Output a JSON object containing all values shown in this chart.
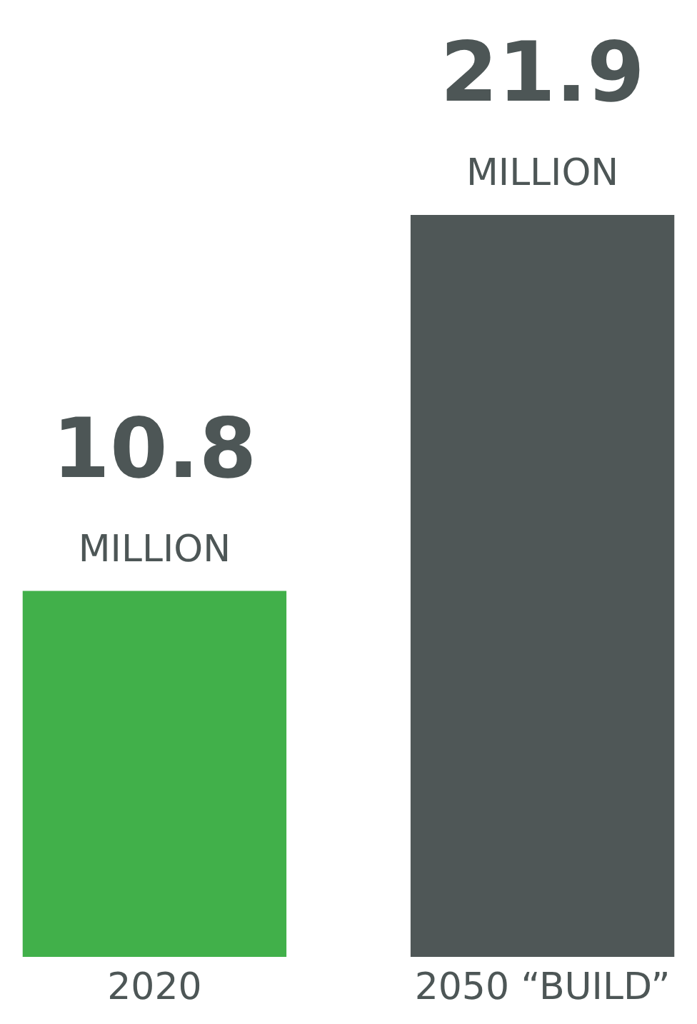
{
  "chart_data": {
    "type": "bar",
    "categories": [
      "2020",
      "2050 “BUILD”"
    ],
    "values": [
      10.8,
      21.9
    ],
    "colors": [
      "#41b04a",
      "#4f5757"
    ],
    "data_labels": true,
    "annotations": [
      {
        "text": "MILLION",
        "x": "2020",
        "y": 10.8
      },
      {
        "text": "MILLION",
        "x": "2050 “BUILD”",
        "y": 21.9
      }
    ]
  }
}
